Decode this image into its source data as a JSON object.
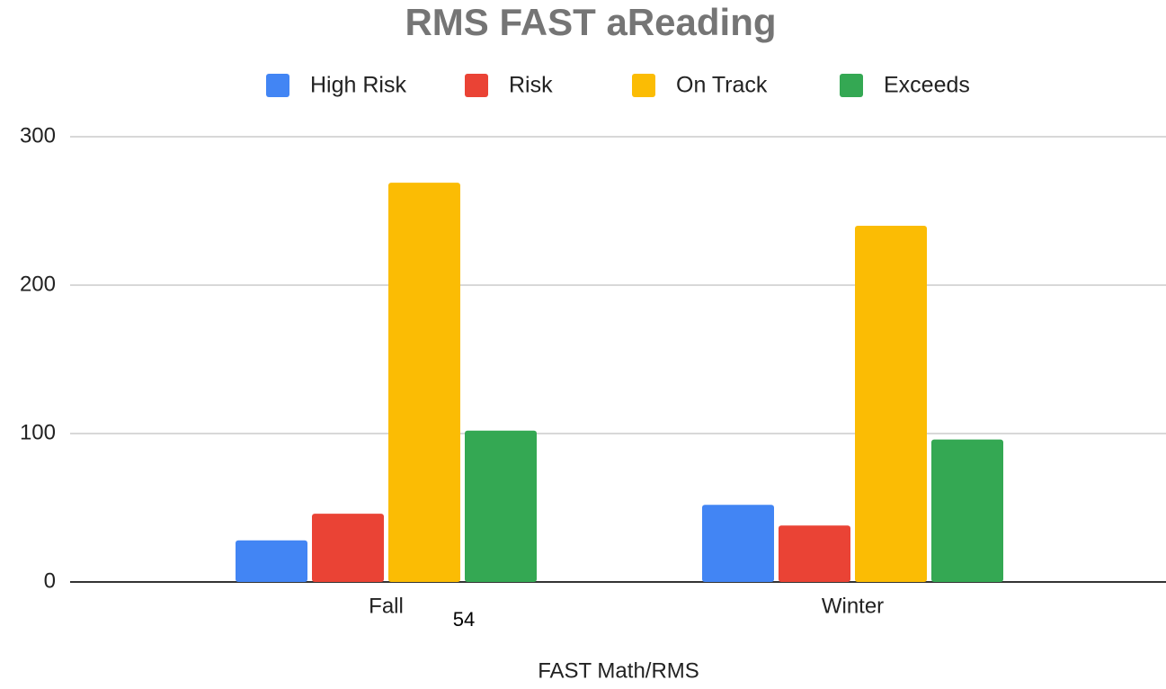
{
  "chart_data": {
    "type": "bar",
    "title": "RMS FAST aReading",
    "x_label": "FAST Math/RMS",
    "annotation": "54",
    "categories": [
      "Fall",
      "Winter"
    ],
    "series": [
      {
        "name": "High Risk",
        "color": "#4285f4",
        "values": [
          28,
          52
        ]
      },
      {
        "name": "Risk",
        "color": "#ea4335",
        "values": [
          46,
          38
        ]
      },
      {
        "name": "On Track",
        "color": "#fbbc04",
        "values": [
          269,
          240
        ]
      },
      {
        "name": "Exceeds",
        "color": "#34a853",
        "values": [
          102,
          96
        ]
      }
    ],
    "ylim": [
      0,
      300
    ],
    "yticks": [
      0,
      100,
      200,
      300
    ],
    "grid": true,
    "legend": "top"
  }
}
